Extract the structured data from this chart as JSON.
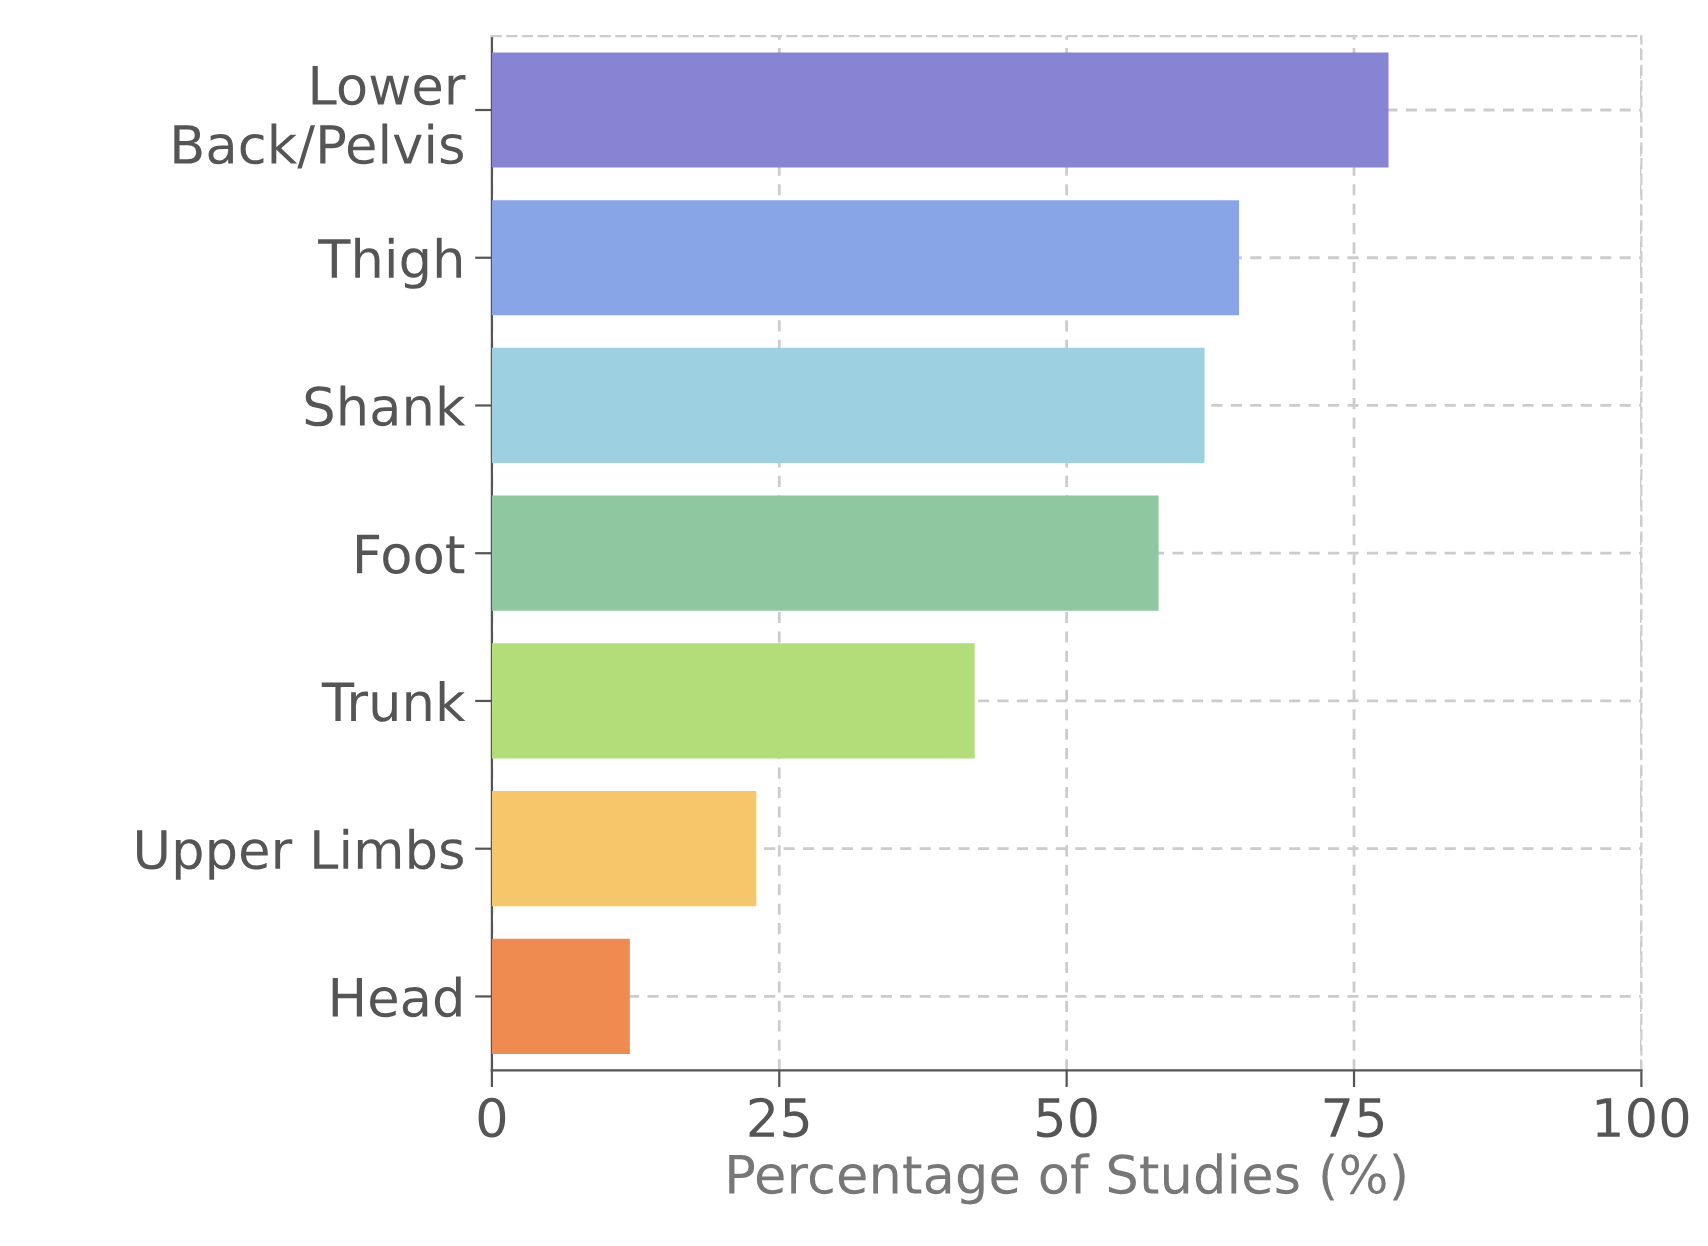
{
  "chart_data": {
    "type": "bar",
    "orientation": "horizontal",
    "xlabel": "Percentage of Studies (%)",
    "categories": [
      "Lower\nBack/Pelvis",
      "Thigh",
      "Shank",
      "Foot",
      "Trunk",
      "Upper Limbs",
      "Head"
    ],
    "values": [
      78,
      65,
      62,
      58,
      42,
      23,
      12
    ],
    "colors": [
      "#8884d4",
      "#88a5e8",
      "#9dd0e0",
      "#8fc8a0",
      "#b2dd78",
      "#f6c76a",
      "#ef8a50"
    ],
    "xlim": [
      0,
      100
    ],
    "xticks": [
      0,
      25,
      50,
      75,
      100
    ],
    "grid": true
  }
}
